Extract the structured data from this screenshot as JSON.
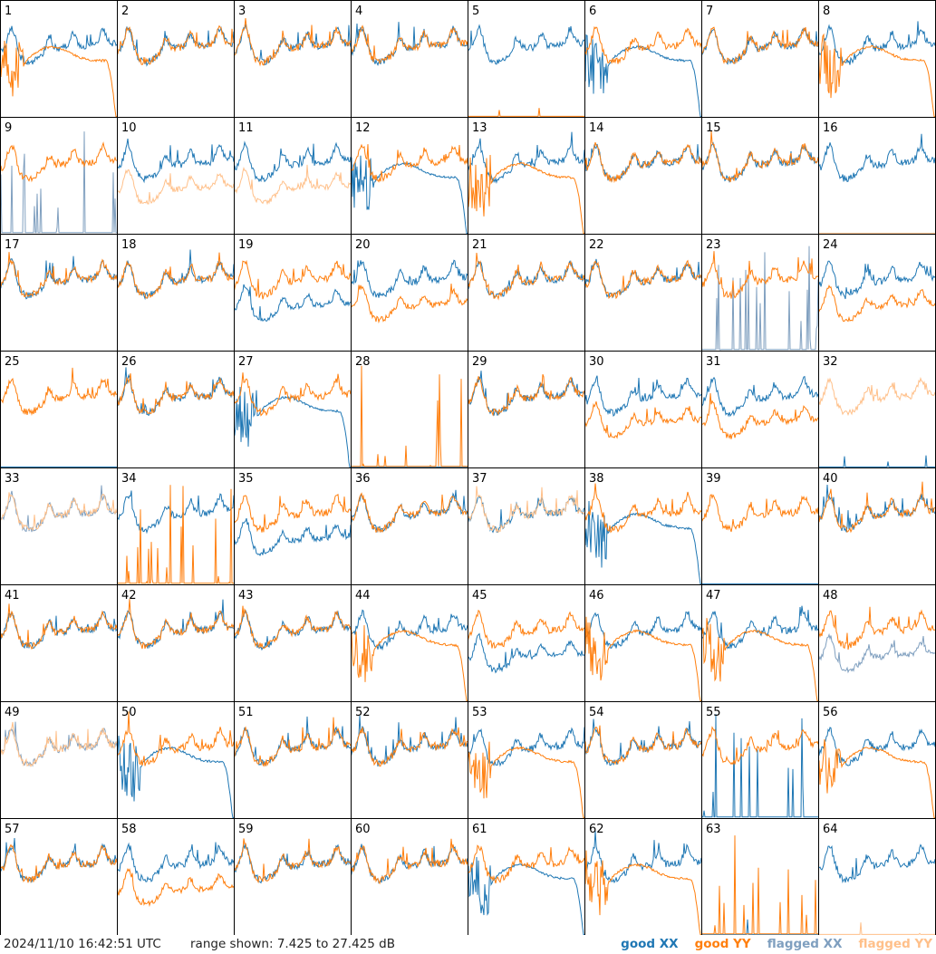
{
  "footer": {
    "timestamp": "2024/11/10 16:42:51 UTC",
    "range_text": "range shown: 7.425 to 27.425 dB"
  },
  "legend": {
    "good_xx": "good XX",
    "good_yy": "good YY",
    "flagged_xx": "flagged XX",
    "flagged_yy": "flagged YY"
  },
  "colors": {
    "good_xx": "#1f77b4",
    "good_yy": "#ff7f0e",
    "flagged_xx": "#7f9fbf",
    "flagged_yy": "#ffc08a",
    "grid_line": "#000000"
  },
  "chart_data": {
    "type": "line",
    "layout": "small multiples, 8 by 8",
    "ylim": [
      7.425,
      27.425
    ],
    "yunit": "dB",
    "panels": [
      {
        "n": 1,
        "xx": "good",
        "yy": "good",
        "xx_shape": "normal",
        "yy_shape": "rolloff"
      },
      {
        "n": 2,
        "xx": "good",
        "yy": "good",
        "xx_shape": "normal",
        "yy_shape": "normal"
      },
      {
        "n": 3,
        "xx": "good",
        "yy": "good",
        "xx_shape": "normal",
        "yy_shape": "normal"
      },
      {
        "n": 4,
        "xx": "good",
        "yy": "good",
        "xx_shape": "normal",
        "yy_shape": "normal"
      },
      {
        "n": 5,
        "xx": "good",
        "yy": "good",
        "xx_shape": "normal",
        "yy_shape": "zero"
      },
      {
        "n": 6,
        "xx": "good",
        "yy": "good",
        "xx_shape": "rolloff",
        "yy_shape": "normal"
      },
      {
        "n": 7,
        "xx": "good",
        "yy": "good",
        "xx_shape": "normal",
        "yy_shape": "normal"
      },
      {
        "n": 8,
        "xx": "good",
        "yy": "good",
        "xx_shape": "normal",
        "yy_shape": "rolloff"
      },
      {
        "n": 9,
        "xx": "flagged",
        "yy": "good",
        "xx_shape": "spiky",
        "yy_shape": "normal"
      },
      {
        "n": 10,
        "xx": "good",
        "yy": "flagged",
        "xx_shape": "normal",
        "yy_shape": "low"
      },
      {
        "n": 11,
        "xx": "good",
        "yy": "flagged",
        "xx_shape": "normal",
        "yy_shape": "low"
      },
      {
        "n": 12,
        "xx": "good",
        "yy": "good",
        "xx_shape": "rolloff",
        "yy_shape": "normal"
      },
      {
        "n": 13,
        "xx": "good",
        "yy": "good",
        "xx_shape": "normal",
        "yy_shape": "rolloff"
      },
      {
        "n": 14,
        "xx": "good",
        "yy": "good",
        "xx_shape": "normal",
        "yy_shape": "normal"
      },
      {
        "n": 15,
        "xx": "good",
        "yy": "good",
        "xx_shape": "normal",
        "yy_shape": "normal"
      },
      {
        "n": 16,
        "xx": "good",
        "yy": "flagged",
        "xx_shape": "normal",
        "yy_shape": "zero"
      },
      {
        "n": 17,
        "xx": "good",
        "yy": "good",
        "xx_shape": "normal",
        "yy_shape": "normal"
      },
      {
        "n": 18,
        "xx": "good",
        "yy": "good",
        "xx_shape": "normal",
        "yy_shape": "normal"
      },
      {
        "n": 19,
        "xx": "good",
        "yy": "good",
        "xx_shape": "low",
        "yy_shape": "normal"
      },
      {
        "n": 20,
        "xx": "good",
        "yy": "good",
        "xx_shape": "normal",
        "yy_shape": "low"
      },
      {
        "n": 21,
        "xx": "good",
        "yy": "good",
        "xx_shape": "normal",
        "yy_shape": "normal"
      },
      {
        "n": 22,
        "xx": "good",
        "yy": "good",
        "xx_shape": "normal",
        "yy_shape": "normal"
      },
      {
        "n": 23,
        "xx": "flagged",
        "yy": "good",
        "xx_shape": "spiky",
        "yy_shape": "normal"
      },
      {
        "n": 24,
        "xx": "good",
        "yy": "good",
        "xx_shape": "normal",
        "yy_shape": "low"
      },
      {
        "n": 25,
        "xx": "good",
        "yy": "good",
        "xx_shape": "zero",
        "yy_shape": "normal"
      },
      {
        "n": 26,
        "xx": "good",
        "yy": "good",
        "xx_shape": "normal",
        "yy_shape": "normal"
      },
      {
        "n": 27,
        "xx": "good",
        "yy": "good",
        "xx_shape": "rolloff",
        "yy_shape": "normal"
      },
      {
        "n": 28,
        "xx": "good",
        "yy": "good",
        "xx_shape": "zero",
        "yy_shape": "spiky"
      },
      {
        "n": 29,
        "xx": "good",
        "yy": "good",
        "xx_shape": "normal",
        "yy_shape": "normal"
      },
      {
        "n": 30,
        "xx": "good",
        "yy": "good",
        "xx_shape": "normal",
        "yy_shape": "low"
      },
      {
        "n": 31,
        "xx": "good",
        "yy": "good",
        "xx_shape": "normal",
        "yy_shape": "low"
      },
      {
        "n": 32,
        "xx": "good",
        "yy": "flagged",
        "xx_shape": "zero",
        "yy_shape": "normal"
      },
      {
        "n": 33,
        "xx": "flagged",
        "yy": "flagged",
        "xx_shape": "normal",
        "yy_shape": "normal"
      },
      {
        "n": 34,
        "xx": "good",
        "yy": "good",
        "xx_shape": "normal",
        "yy_shape": "spiky"
      },
      {
        "n": 35,
        "xx": "good",
        "yy": "good",
        "xx_shape": "low",
        "yy_shape": "normal"
      },
      {
        "n": 36,
        "xx": "good",
        "yy": "good",
        "xx_shape": "normal",
        "yy_shape": "normal"
      },
      {
        "n": 37,
        "xx": "good",
        "yy": "flagged",
        "xx_shape": "normal",
        "yy_shape": "normal"
      },
      {
        "n": 38,
        "xx": "good",
        "yy": "good",
        "xx_shape": "rolloff",
        "yy_shape": "normal"
      },
      {
        "n": 39,
        "xx": "good",
        "yy": "good",
        "xx_shape": "zero",
        "yy_shape": "normal"
      },
      {
        "n": 40,
        "xx": "good",
        "yy": "good",
        "xx_shape": "normal",
        "yy_shape": "normal"
      },
      {
        "n": 41,
        "xx": "good",
        "yy": "good",
        "xx_shape": "normal",
        "yy_shape": "normal"
      },
      {
        "n": 42,
        "xx": "good",
        "yy": "good",
        "xx_shape": "normal",
        "yy_shape": "normal"
      },
      {
        "n": 43,
        "xx": "good",
        "yy": "good",
        "xx_shape": "normal",
        "yy_shape": "normal"
      },
      {
        "n": 44,
        "xx": "good",
        "yy": "good",
        "xx_shape": "normal",
        "yy_shape": "rolloff"
      },
      {
        "n": 45,
        "xx": "good",
        "yy": "good",
        "xx_shape": "low",
        "yy_shape": "normal"
      },
      {
        "n": 46,
        "xx": "good",
        "yy": "good",
        "xx_shape": "normal",
        "yy_shape": "rolloff"
      },
      {
        "n": 47,
        "xx": "good",
        "yy": "good",
        "xx_shape": "normal",
        "yy_shape": "rolloff"
      },
      {
        "n": 48,
        "xx": "flagged",
        "yy": "good",
        "xx_shape": "low",
        "yy_shape": "normal"
      },
      {
        "n": 49,
        "xx": "flagged",
        "yy": "flagged",
        "xx_shape": "normal",
        "yy_shape": "normal"
      },
      {
        "n": 50,
        "xx": "good",
        "yy": "good",
        "xx_shape": "rolloff",
        "yy_shape": "normal"
      },
      {
        "n": 51,
        "xx": "good",
        "yy": "good",
        "xx_shape": "normal",
        "yy_shape": "normal"
      },
      {
        "n": 52,
        "xx": "good",
        "yy": "good",
        "xx_shape": "normal",
        "yy_shape": "normal"
      },
      {
        "n": 53,
        "xx": "good",
        "yy": "good",
        "xx_shape": "normal",
        "yy_shape": "rolloff"
      },
      {
        "n": 54,
        "xx": "good",
        "yy": "good",
        "xx_shape": "normal",
        "yy_shape": "normal"
      },
      {
        "n": 55,
        "xx": "good",
        "yy": "good",
        "xx_shape": "spiky",
        "yy_shape": "normal"
      },
      {
        "n": 56,
        "xx": "good",
        "yy": "good",
        "xx_shape": "normal",
        "yy_shape": "rolloff"
      },
      {
        "n": 57,
        "xx": "good",
        "yy": "good",
        "xx_shape": "normal",
        "yy_shape": "normal"
      },
      {
        "n": 58,
        "xx": "good",
        "yy": "good",
        "xx_shape": "normal",
        "yy_shape": "low"
      },
      {
        "n": 59,
        "xx": "good",
        "yy": "good",
        "xx_shape": "normal",
        "yy_shape": "normal"
      },
      {
        "n": 60,
        "xx": "good",
        "yy": "good",
        "xx_shape": "normal",
        "yy_shape": "normal"
      },
      {
        "n": 61,
        "xx": "good",
        "yy": "good",
        "xx_shape": "rolloff",
        "yy_shape": "normal"
      },
      {
        "n": 62,
        "xx": "good",
        "yy": "good",
        "xx_shape": "normal",
        "yy_shape": "rolloff"
      },
      {
        "n": 63,
        "xx": "good",
        "yy": "good",
        "xx_shape": "zero",
        "yy_shape": "spiky"
      },
      {
        "n": 64,
        "xx": "good",
        "yy": "flagged",
        "xx_shape": "normal",
        "yy_shape": "zero"
      }
    ]
  }
}
